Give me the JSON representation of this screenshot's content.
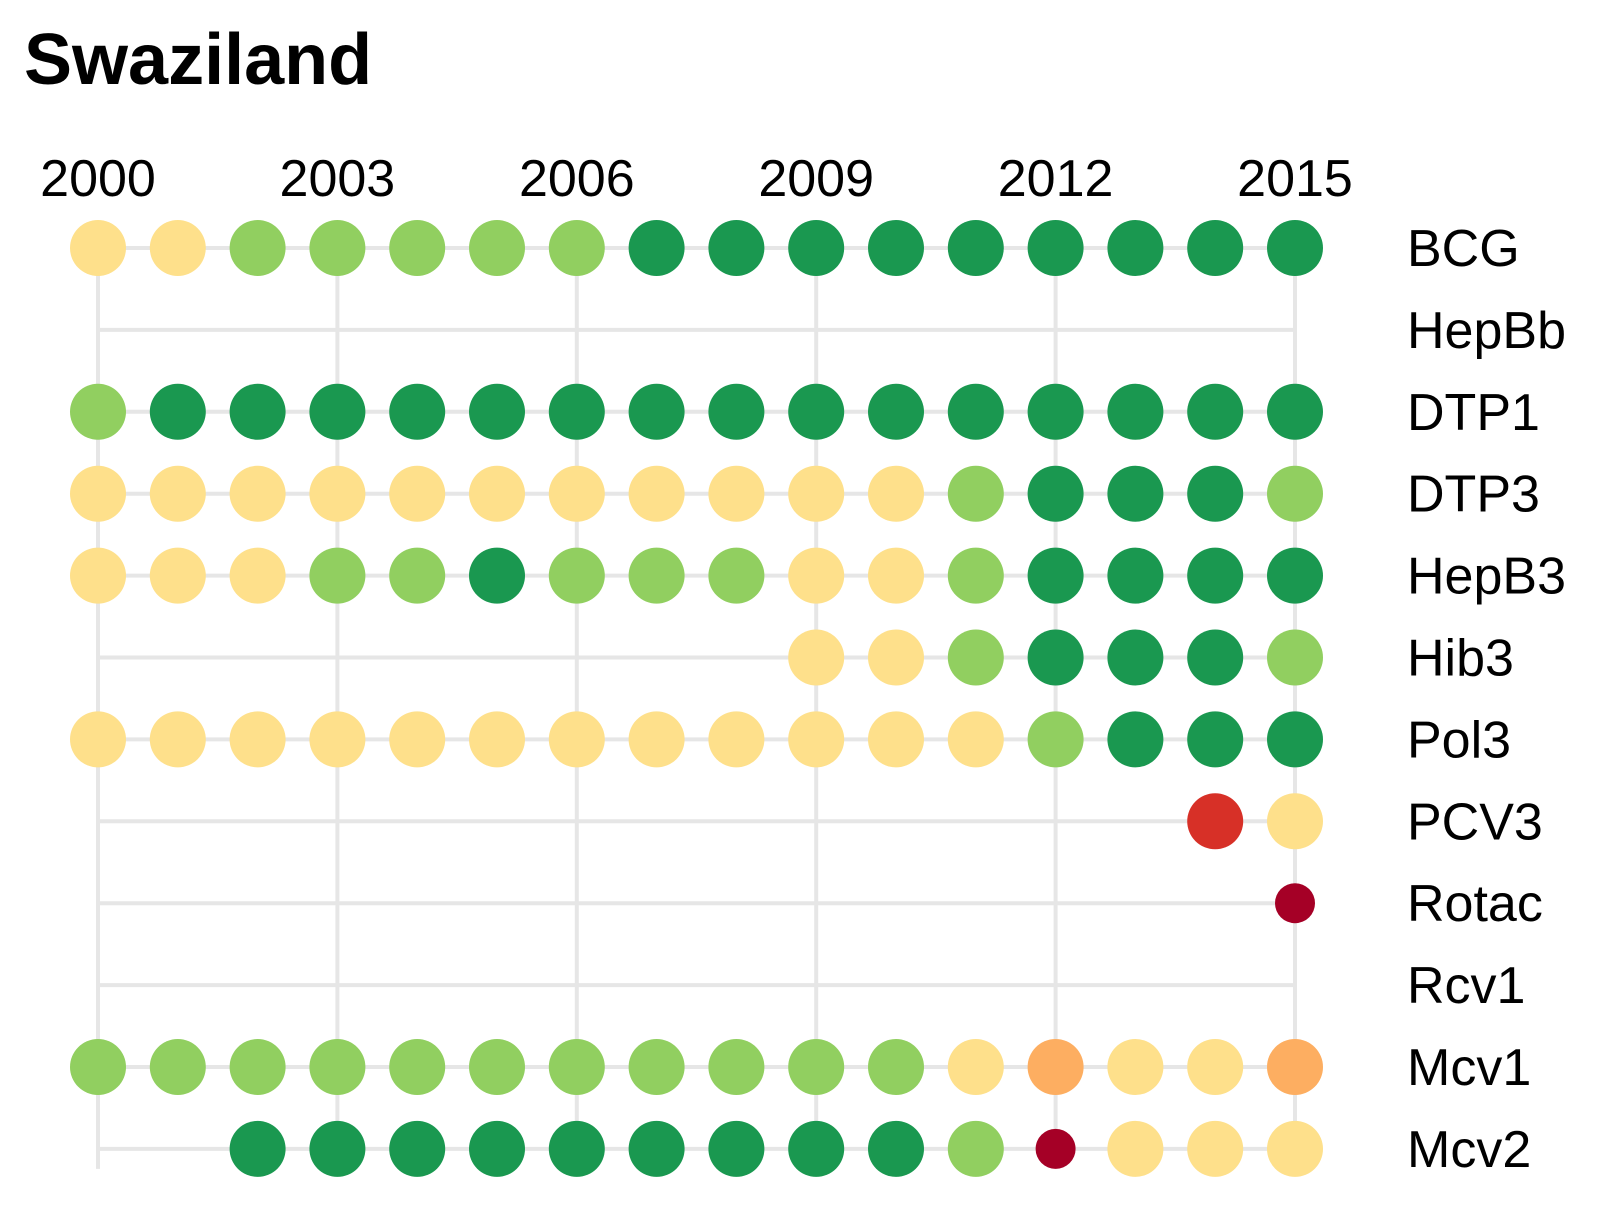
{
  "title": "Swaziland",
  "chart_data": {
    "type": "scatter",
    "title": "Swaziland",
    "x_ticks": [
      2000,
      2003,
      2006,
      2009,
      2012,
      2015
    ],
    "years": [
      2000,
      2001,
      2002,
      2003,
      2004,
      2005,
      2006,
      2007,
      2008,
      2009,
      2010,
      2011,
      2012,
      2013,
      2014,
      2015
    ],
    "grid": true,
    "colors": {
      "dark_green": "#1a9850",
      "light_green": "#91cf60",
      "pale_yellow": "#fee08b",
      "orange": "#fdae61",
      "red": "#d73027",
      "dark_red": "#a50026"
    },
    "series": [
      {
        "name": "BCG",
        "start": 2000,
        "end": 2015,
        "values": [
          "pale_yellow",
          "pale_yellow",
          "light_green",
          "light_green",
          "light_green",
          "light_green",
          "light_green",
          "dark_green",
          "dark_green",
          "dark_green",
          "dark_green",
          "dark_green",
          "dark_green",
          "dark_green",
          "dark_green",
          "dark_green"
        ]
      },
      {
        "name": "HepBb",
        "start": 2000,
        "end": 2015,
        "values": [
          null,
          null,
          null,
          null,
          null,
          null,
          null,
          null,
          null,
          null,
          null,
          null,
          null,
          null,
          null,
          null
        ]
      },
      {
        "name": "DTP1",
        "start": 2000,
        "end": 2015,
        "values": [
          "light_green",
          "dark_green",
          "dark_green",
          "dark_green",
          "dark_green",
          "dark_green",
          "dark_green",
          "dark_green",
          "dark_green",
          "dark_green",
          "dark_green",
          "dark_green",
          "dark_green",
          "dark_green",
          "dark_green",
          "dark_green"
        ]
      },
      {
        "name": "DTP3",
        "start": 2000,
        "end": 2015,
        "values": [
          "pale_yellow",
          "pale_yellow",
          "pale_yellow",
          "pale_yellow",
          "pale_yellow",
          "pale_yellow",
          "pale_yellow",
          "pale_yellow",
          "pale_yellow",
          "pale_yellow",
          "pale_yellow",
          "light_green",
          "dark_green",
          "dark_green",
          "dark_green",
          "light_green"
        ]
      },
      {
        "name": "HepB3",
        "start": 2000,
        "end": 2015,
        "values": [
          "pale_yellow",
          "pale_yellow",
          "pale_yellow",
          "light_green",
          "light_green",
          "dark_green",
          "light_green",
          "light_green",
          "light_green",
          "pale_yellow",
          "pale_yellow",
          "light_green",
          "dark_green",
          "dark_green",
          "dark_green",
          "dark_green"
        ]
      },
      {
        "name": "Hib3",
        "start": 2000,
        "end": 2015,
        "values": [
          null,
          null,
          null,
          null,
          null,
          null,
          null,
          null,
          null,
          "pale_yellow",
          "pale_yellow",
          "light_green",
          "dark_green",
          "dark_green",
          "dark_green",
          "light_green"
        ]
      },
      {
        "name": "Pol3",
        "start": 2000,
        "end": 2015,
        "values": [
          "pale_yellow",
          "pale_yellow",
          "pale_yellow",
          "pale_yellow",
          "pale_yellow",
          "pale_yellow",
          "pale_yellow",
          "pale_yellow",
          "pale_yellow",
          "pale_yellow",
          "pale_yellow",
          "pale_yellow",
          "light_green",
          "dark_green",
          "dark_green",
          "dark_green"
        ]
      },
      {
        "name": "PCV3",
        "start": 2000,
        "end": 2015,
        "values": [
          null,
          null,
          null,
          null,
          null,
          null,
          null,
          null,
          null,
          null,
          null,
          null,
          null,
          null,
          "red",
          "pale_yellow"
        ]
      },
      {
        "name": "Rotac",
        "start": 2000,
        "end": 2015,
        "small": [
          15
        ],
        "values": [
          null,
          null,
          null,
          null,
          null,
          null,
          null,
          null,
          null,
          null,
          null,
          null,
          null,
          null,
          null,
          "dark_red"
        ]
      },
      {
        "name": "Rcv1",
        "start": 2000,
        "end": 2015,
        "values": [
          null,
          null,
          null,
          null,
          null,
          null,
          null,
          null,
          null,
          null,
          null,
          null,
          null,
          null,
          null,
          null
        ]
      },
      {
        "name": "Mcv1",
        "start": 2000,
        "end": 2015,
        "values": [
          "light_green",
          "light_green",
          "light_green",
          "light_green",
          "light_green",
          "light_green",
          "light_green",
          "light_green",
          "light_green",
          "light_green",
          "light_green",
          "pale_yellow",
          "orange",
          "pale_yellow",
          "pale_yellow",
          "orange"
        ]
      },
      {
        "name": "Mcv2",
        "start": 2000,
        "end": 2015,
        "small": [
          12
        ],
        "values": [
          null,
          null,
          "dark_green",
          "dark_green",
          "dark_green",
          "dark_green",
          "dark_green",
          "dark_green",
          "dark_green",
          "dark_green",
          "dark_green",
          "light_green",
          "dark_red",
          "pale_yellow",
          "pale_yellow",
          "pale_yellow"
        ]
      }
    ]
  }
}
